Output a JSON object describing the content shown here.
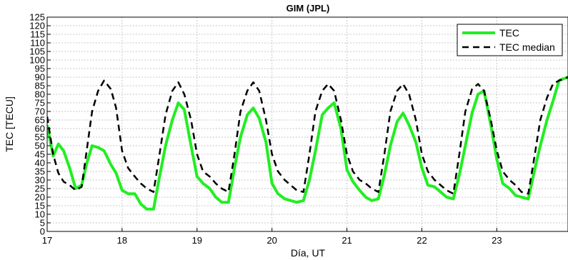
{
  "chart_data": {
    "type": "line",
    "title": "GIM (JPL)",
    "xlabel": "Día, UT",
    "ylabel": "TEC [TECU]",
    "xlim": [
      17,
      23.95
    ],
    "ylim": [
      0,
      125
    ],
    "x_ticks": [
      17,
      18,
      19,
      20,
      21,
      22,
      23
    ],
    "y_ticks": [
      0,
      5,
      10,
      15,
      20,
      25,
      30,
      35,
      40,
      45,
      50,
      55,
      60,
      65,
      70,
      75,
      80,
      85,
      90,
      95,
      100,
      105,
      110,
      115,
      120,
      125
    ],
    "grid": true,
    "legend_position": "top-right",
    "colors": {
      "tec": "#22ee22",
      "median": "#000000"
    },
    "series": [
      {
        "name": "TEC",
        "style": "solid",
        "x": [
          17.0,
          17.08,
          17.15,
          17.22,
          17.3,
          17.38,
          17.46,
          17.53,
          17.6,
          17.68,
          17.76,
          17.85,
          17.92,
          18.0,
          18.08,
          18.17,
          18.25,
          18.33,
          18.42,
          18.5,
          18.58,
          18.67,
          18.75,
          18.83,
          18.92,
          19.0,
          19.08,
          19.17,
          19.25,
          19.33,
          19.42,
          19.5,
          19.58,
          19.67,
          19.75,
          19.83,
          19.92,
          20.0,
          20.08,
          20.17,
          20.25,
          20.33,
          20.42,
          20.5,
          20.58,
          20.67,
          20.75,
          20.83,
          20.92,
          21.0,
          21.08,
          21.17,
          21.25,
          21.33,
          21.42,
          21.5,
          21.58,
          21.67,
          21.75,
          21.83,
          21.92,
          22.0,
          22.08,
          22.17,
          22.25,
          22.33,
          22.42,
          22.5,
          22.58,
          22.67,
          22.75,
          22.83,
          22.92,
          23.0,
          23.08,
          23.17,
          23.25,
          23.33,
          23.42,
          23.5,
          23.58,
          23.67,
          23.75,
          23.83,
          23.95
        ],
        "y": [
          62,
          44,
          51,
          47,
          37,
          25,
          27,
          40,
          50,
          49,
          47,
          39,
          34,
          24,
          22,
          22,
          16,
          13,
          13,
          32,
          50,
          65,
          75,
          71,
          50,
          32,
          28,
          25,
          20,
          17,
          17,
          37,
          55,
          68,
          72,
          66,
          52,
          28,
          22,
          19,
          18,
          17,
          18,
          30,
          47,
          68,
          72,
          75,
          60,
          36,
          29,
          24,
          20,
          18,
          19,
          33,
          50,
          64,
          69,
          62,
          52,
          37,
          27,
          26,
          23,
          20,
          19,
          33,
          50,
          69,
          80,
          82,
          62,
          42,
          28,
          25,
          21,
          20,
          19,
          35,
          50,
          65,
          76,
          88,
          90
        ]
      },
      {
        "name": "TEC median",
        "style": "dashed",
        "x": [
          17.0,
          17.08,
          17.15,
          17.22,
          17.3,
          17.38,
          17.46,
          17.53,
          17.6,
          17.68,
          17.76,
          17.85,
          17.92,
          18.0,
          18.08,
          18.17,
          18.25,
          18.33,
          18.42,
          18.5,
          18.58,
          18.67,
          18.75,
          18.83,
          18.92,
          19.0,
          19.08,
          19.17,
          19.25,
          19.33,
          19.42,
          19.5,
          19.58,
          19.67,
          19.75,
          19.83,
          19.92,
          20.0,
          20.08,
          20.17,
          20.25,
          20.33,
          20.42,
          20.5,
          20.58,
          20.67,
          20.75,
          20.83,
          20.92,
          21.0,
          21.08,
          21.17,
          21.25,
          21.33,
          21.42,
          21.5,
          21.58,
          21.67,
          21.75,
          21.83,
          21.92,
          22.0,
          22.08,
          22.17,
          22.25,
          22.33,
          22.42,
          22.5,
          22.58,
          22.67,
          22.75,
          22.83,
          22.92,
          23.0,
          23.08,
          23.17,
          23.25,
          23.33,
          23.42,
          23.5,
          23.58,
          23.67,
          23.75,
          23.83,
          23.95
        ],
        "y": [
          67,
          45,
          34,
          29,
          27,
          24,
          26,
          48,
          70,
          82,
          88,
          83,
          72,
          47,
          37,
          32,
          28,
          25,
          23,
          45,
          68,
          82,
          87,
          80,
          65,
          45,
          35,
          32,
          28,
          25,
          23,
          45,
          70,
          82,
          87,
          82,
          65,
          45,
          35,
          30,
          27,
          24,
          23,
          45,
          70,
          82,
          86,
          82,
          65,
          45,
          35,
          30,
          28,
          25,
          23,
          45,
          70,
          82,
          86,
          80,
          65,
          45,
          35,
          30,
          27,
          24,
          22,
          45,
          70,
          83,
          86,
          82,
          65,
          47,
          35,
          30,
          27,
          23,
          22,
          43,
          65,
          78,
          86,
          88,
          90
        ]
      }
    ]
  }
}
